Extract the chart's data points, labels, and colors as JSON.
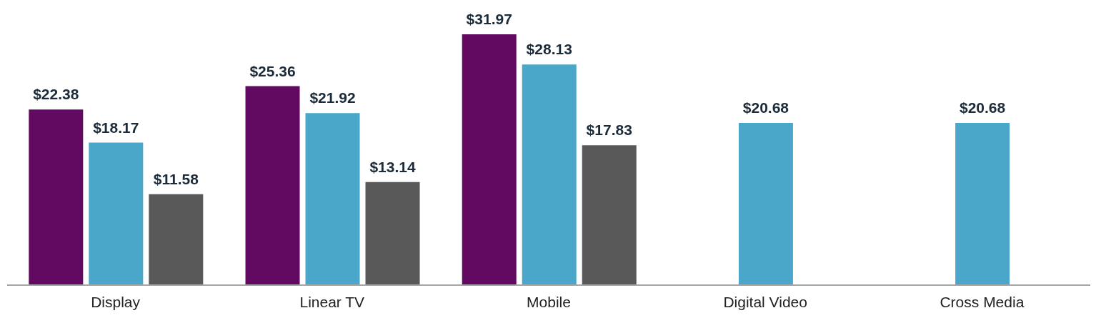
{
  "chart_data": {
    "type": "bar",
    "categories": [
      "Display",
      "Linear TV",
      "Mobile",
      "Digital Video",
      "Cross Media"
    ],
    "series": [
      {
        "color": "#620a62",
        "values": [
          22.38,
          25.36,
          31.97,
          null,
          null
        ],
        "value_labels": [
          "$22.38",
          "$25.36",
          "$31.97",
          null,
          null
        ]
      },
      {
        "color": "#4aa7c9",
        "values": [
          18.17,
          21.92,
          28.13,
          20.68,
          20.68
        ],
        "value_labels": [
          "$18.17",
          "$21.92",
          "$28.13",
          "$20.68",
          "$20.68"
        ]
      },
      {
        "color": "#595959",
        "values": [
          11.58,
          13.14,
          17.83,
          null,
          null
        ],
        "value_labels": [
          "$11.58",
          "$13.14",
          "$17.83",
          null,
          null
        ]
      }
    ],
    "grid": false,
    "legend": false
  }
}
